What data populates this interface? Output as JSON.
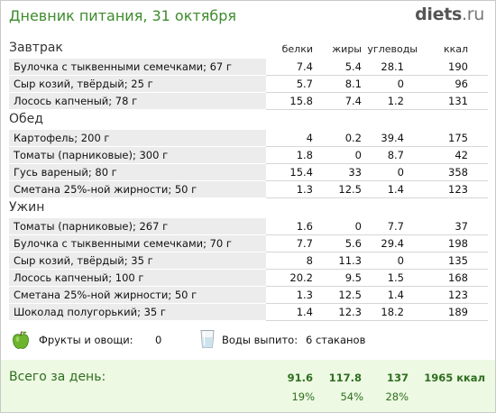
{
  "header": {
    "title": "Дневник питания, 31 октября",
    "logo_main": "diets",
    "logo_tld": ".ru"
  },
  "columns": {
    "protein": "белки",
    "fat": "жиры",
    "carbs": "углеводы",
    "kcal": "ккал"
  },
  "meals": [
    {
      "name": "Завтрак",
      "items": [
        {
          "food": "Булочка с тыквенными семечками; 67 г",
          "protein": "7.4",
          "fat": "5.4",
          "carbs": "28.1",
          "kcal": "190"
        },
        {
          "food": "Сыр козий, твёрдый; 25 г",
          "protein": "5.7",
          "fat": "8.1",
          "carbs": "0",
          "kcal": "96"
        },
        {
          "food": "Лосось капченый; 78 г",
          "protein": "15.8",
          "fat": "7.4",
          "carbs": "1.2",
          "kcal": "131"
        }
      ]
    },
    {
      "name": "Обед",
      "items": [
        {
          "food": "Картофель; 200 г",
          "protein": "4",
          "fat": "0.2",
          "carbs": "39.4",
          "kcal": "175"
        },
        {
          "food": "Томаты (парниковые); 300 г",
          "protein": "1.8",
          "fat": "0",
          "carbs": "8.7",
          "kcal": "42"
        },
        {
          "food": "Гусь вареный; 80 г",
          "protein": "15.4",
          "fat": "33",
          "carbs": "0",
          "kcal": "358"
        },
        {
          "food": "Сметана 25%-ной жирности; 50 г",
          "protein": "1.3",
          "fat": "12.5",
          "carbs": "1.4",
          "kcal": "123"
        }
      ]
    },
    {
      "name": "Ужин",
      "items": [
        {
          "food": "Томаты (парниковые); 267 г",
          "protein": "1.6",
          "fat": "0",
          "carbs": "7.7",
          "kcal": "37"
        },
        {
          "food": "Булочка с тыквенными семечками; 70 г",
          "protein": "7.7",
          "fat": "5.6",
          "carbs": "29.4",
          "kcal": "198"
        },
        {
          "food": "Сыр козий, твёрдый; 35 г",
          "protein": "8",
          "fat": "11.3",
          "carbs": "0",
          "kcal": "135"
        },
        {
          "food": "Лосось капченый; 100 г",
          "protein": "20.2",
          "fat": "9.5",
          "carbs": "1.5",
          "kcal": "168"
        },
        {
          "food": "Сметана 25%-ной жирности; 50 г",
          "protein": "1.3",
          "fat": "12.5",
          "carbs": "1.4",
          "kcal": "123"
        },
        {
          "food": "Шоколад полугорький; 35 г",
          "protein": "1.4",
          "fat": "12.3",
          "carbs": "18.2",
          "kcal": "189"
        }
      ]
    }
  ],
  "extras": {
    "fruits_label": "Фрукты и овощи:",
    "fruits_value": "0",
    "water_label": "Воды выпито:",
    "water_value": "6 стаканов",
    "fruits_icon": "green-apple-icon",
    "water_icon": "water-glass-icon"
  },
  "totals": {
    "label": "Всего за день:",
    "protein": "91.6",
    "fat": "117.8",
    "carbs": "137",
    "kcal": "1965 ккал",
    "protein_pct": "19%",
    "fat_pct": "54%",
    "carbs_pct": "28%"
  },
  "colors": {
    "title": "#3d8b2c",
    "row_bg": "#ececec",
    "totals_bg": "#edf9e3",
    "totals_text": "#2f6e1f"
  }
}
